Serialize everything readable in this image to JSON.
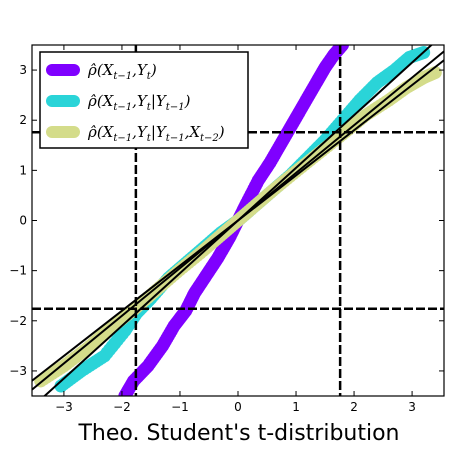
{
  "chart_data": {
    "type": "scatter",
    "title": "",
    "xlabel": "Theo. Student's t-distribution",
    "ylabel": "",
    "xlim": [
      -3.55,
      3.55
    ],
    "ylim": [
      -3.5,
      3.5
    ],
    "xticks": [
      -3,
      -2,
      -1,
      0,
      1,
      2,
      3
    ],
    "yticks": [
      -3,
      -2,
      -1,
      0,
      1,
      2,
      3
    ],
    "grid": false,
    "legend_position": "top-left",
    "critical_value": 1.76,
    "series": [
      {
        "name": "ρ̂(X_{t−1}, Y_t)",
        "legend_parts": {
          "base": "ρ̂(X",
          "sub1": "t−1",
          "mid1": ",Y",
          "sub2": "t",
          "tail": ")"
        },
        "color": "#7f00ff",
        "points": [
          [
            -1.95,
            -3.5
          ],
          [
            -1.8,
            -3.2
          ],
          [
            -1.55,
            -2.9
          ],
          [
            -1.3,
            -2.5
          ],
          [
            -1.1,
            -2.1
          ],
          [
            -0.9,
            -1.8
          ],
          [
            -0.75,
            -1.45
          ],
          [
            -0.55,
            -1.1
          ],
          [
            -0.35,
            -0.75
          ],
          [
            -0.15,
            -0.35
          ],
          [
            0.0,
            0.0
          ],
          [
            0.15,
            0.35
          ],
          [
            0.35,
            0.8
          ],
          [
            0.55,
            1.15
          ],
          [
            0.75,
            1.55
          ],
          [
            0.95,
            1.95
          ],
          [
            1.15,
            2.35
          ],
          [
            1.35,
            2.75
          ],
          [
            1.5,
            3.05
          ],
          [
            1.65,
            3.3
          ],
          [
            1.8,
            3.5
          ]
        ]
      },
      {
        "name": "ρ̂(X_{t−1}, Y_t | Y_{t−1})",
        "legend_parts": {
          "base": "ρ̂(X",
          "sub1": "t−1",
          "mid1": ",Y",
          "sub2": "t",
          "mid2": "|Y",
          "sub3": "t−1",
          "tail": ")"
        },
        "color": "#2ad4d8",
        "points": [
          [
            -3.05,
            -3.3
          ],
          [
            -2.7,
            -3.0
          ],
          [
            -2.3,
            -2.7
          ],
          [
            -1.95,
            -2.2
          ],
          [
            -1.75,
            -1.85
          ],
          [
            -1.5,
            -1.55
          ],
          [
            -1.2,
            -1.15
          ],
          [
            -0.9,
            -0.85
          ],
          [
            -0.6,
            -0.55
          ],
          [
            -0.3,
            -0.25
          ],
          [
            0.0,
            0.0
          ],
          [
            0.3,
            0.3
          ],
          [
            0.6,
            0.6
          ],
          [
            0.9,
            0.9
          ],
          [
            1.2,
            1.25
          ],
          [
            1.5,
            1.6
          ],
          [
            1.8,
            2.0
          ],
          [
            2.1,
            2.4
          ],
          [
            2.4,
            2.75
          ],
          [
            2.7,
            3.0
          ],
          [
            2.95,
            3.25
          ],
          [
            3.2,
            3.35
          ]
        ]
      },
      {
        "name": "ρ̂(X_{t−1}, Y_t | Y_{t−1}, X_{t−2})",
        "legend_parts": {
          "base": "ρ̂(X",
          "sub1": "t−1",
          "mid1": ",Y",
          "sub2": "t",
          "mid2": "|Y",
          "sub3": "t−1",
          "mid3": ",X",
          "sub4": "t−2",
          "tail": ")"
        },
        "color": "#d4dc8a",
        "points": [
          [
            -3.4,
            -3.2
          ],
          [
            -3.0,
            -2.9
          ],
          [
            -2.6,
            -2.55
          ],
          [
            -2.2,
            -2.15
          ],
          [
            -1.8,
            -1.78
          ],
          [
            -1.4,
            -1.38
          ],
          [
            -1.0,
            -0.98
          ],
          [
            -0.6,
            -0.6
          ],
          [
            -0.3,
            -0.3
          ],
          [
            0.0,
            0.0
          ],
          [
            0.3,
            0.3
          ],
          [
            0.6,
            0.6
          ],
          [
            1.0,
            0.98
          ],
          [
            1.4,
            1.35
          ],
          [
            1.8,
            1.72
          ],
          [
            2.2,
            2.1
          ],
          [
            2.6,
            2.4
          ],
          [
            2.9,
            2.65
          ],
          [
            3.2,
            2.85
          ],
          [
            3.4,
            2.95
          ]
        ]
      }
    ],
    "reference_lines": [
      {
        "kind": "line",
        "slope": 1.05
      },
      {
        "kind": "line",
        "slope": 0.95
      },
      {
        "kind": "line",
        "slope": 0.9
      }
    ]
  }
}
